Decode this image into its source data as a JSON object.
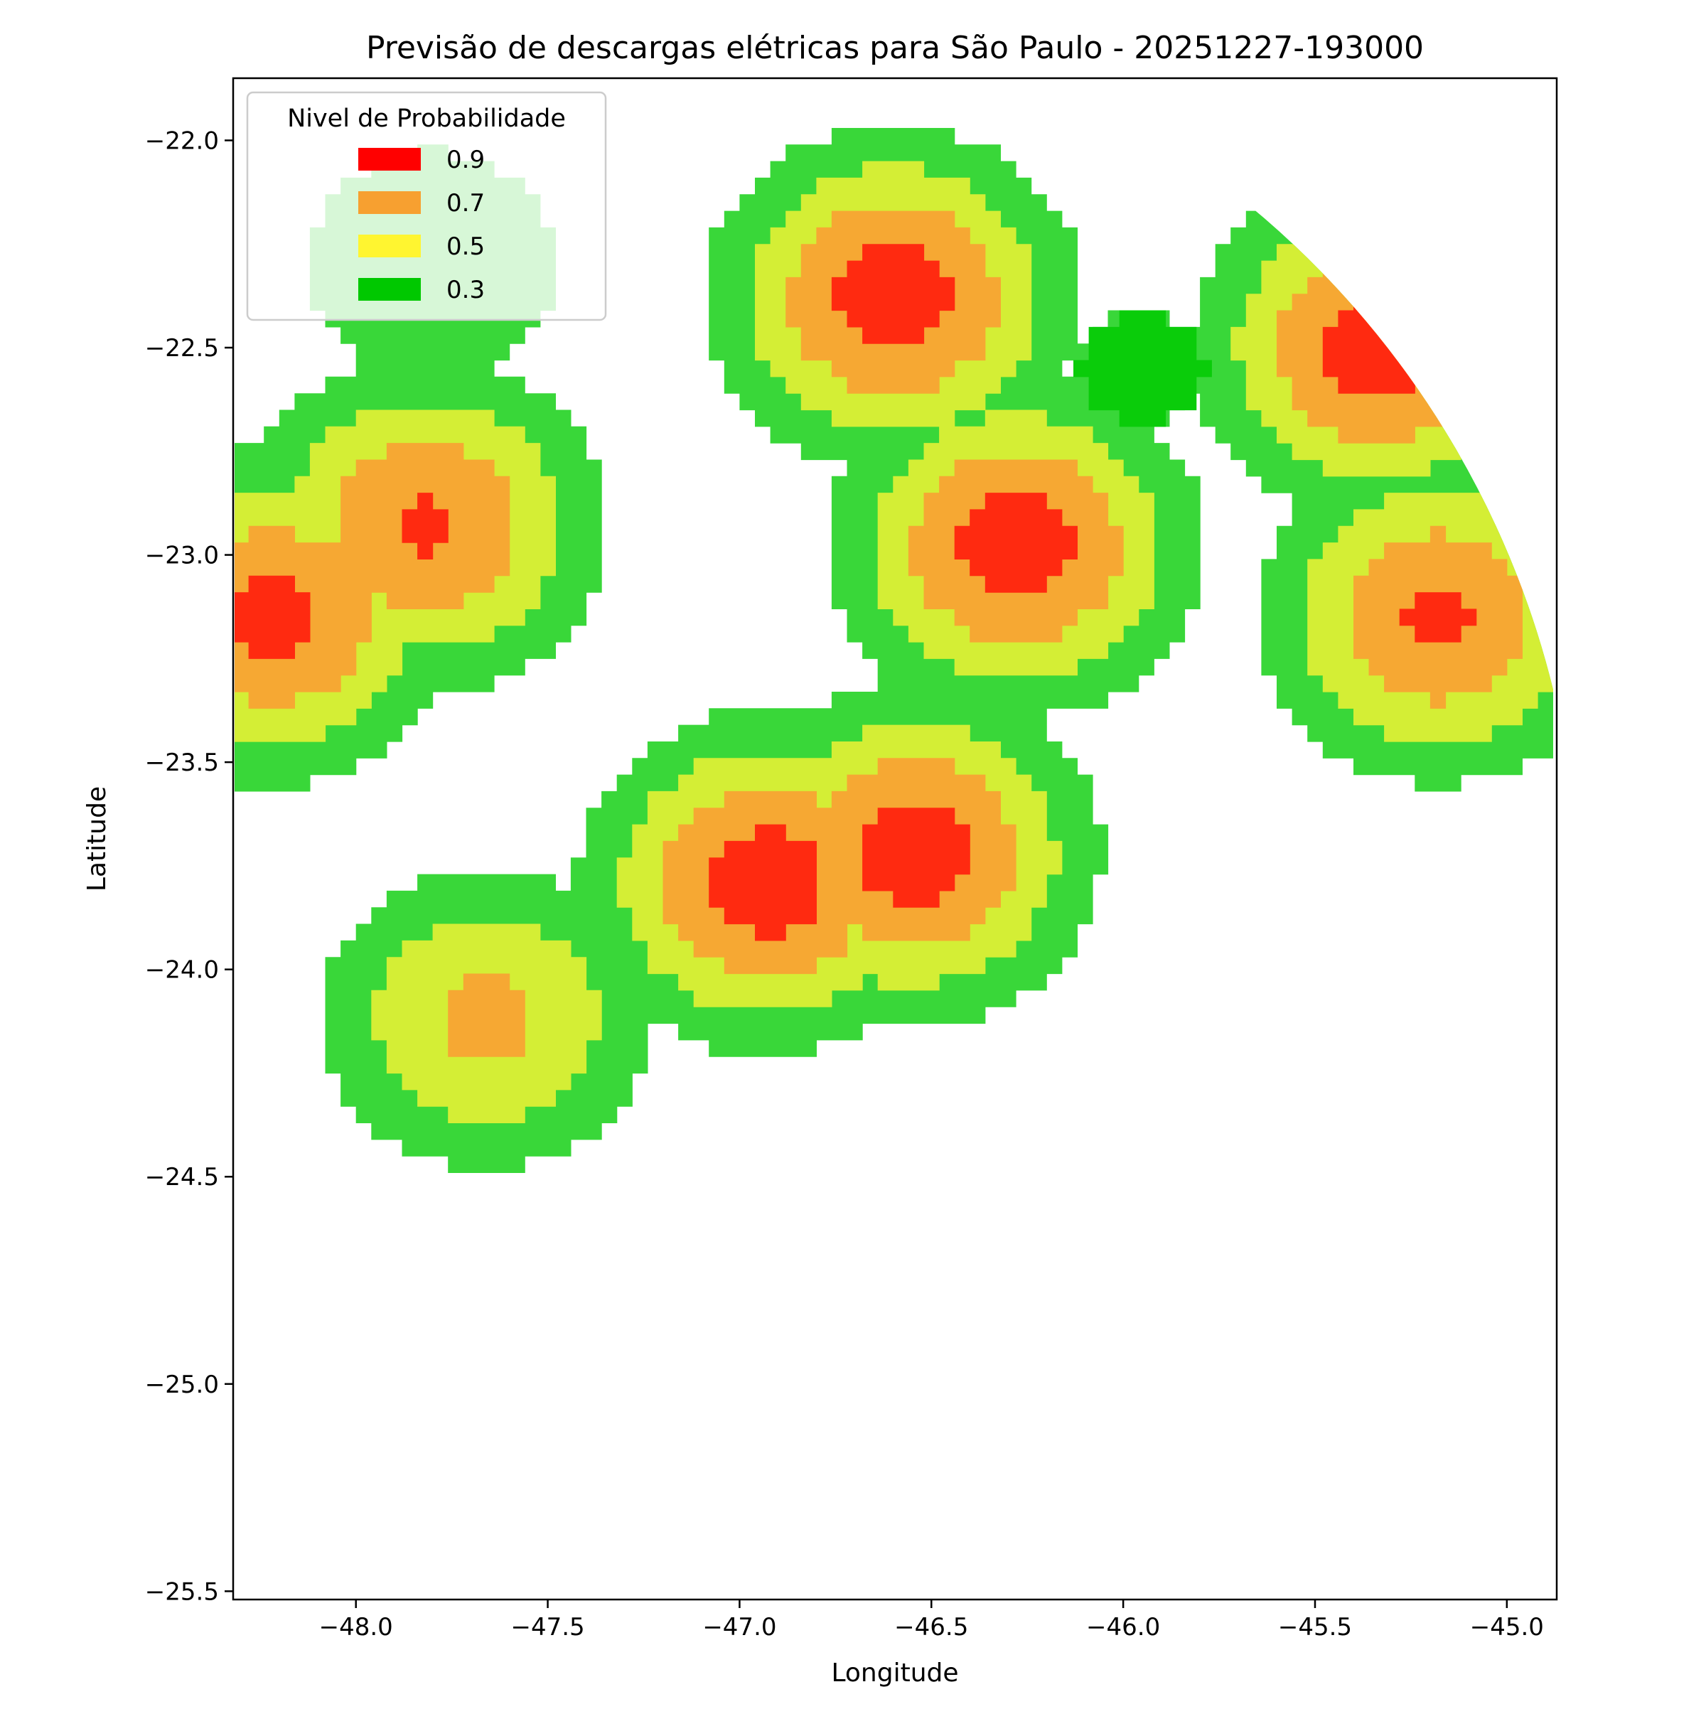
{
  "chart_data": {
    "type": "heatmap",
    "title": "Previsão de descargas elétricas para São Paulo - 20251227-193000",
    "xlabel": "Longitude",
    "ylabel": "Latitude",
    "xlim": [
      -48.32,
      -44.87
    ],
    "ylim": [
      -25.52,
      -21.85
    ],
    "x_ticks": [
      -48.0,
      -47.5,
      -47.0,
      -46.5,
      -46.0,
      -45.5,
      -45.0
    ],
    "x_tick_labels": [
      "−48.0",
      "−47.5",
      "−47.0",
      "−46.5",
      "−46.0",
      "−45.5",
      "−45.0"
    ],
    "y_ticks": [
      -22.0,
      -22.5,
      -23.0,
      -23.5,
      -24.0,
      -24.5,
      -25.0,
      -25.5
    ],
    "y_tick_labels": [
      "−22.0",
      "−22.5",
      "−23.0",
      "−23.5",
      "−24.0",
      "−24.5",
      "−25.0",
      "−25.5"
    ],
    "grid": false,
    "legend": {
      "title": "Nivel de Probabilidade",
      "placement": "top-left",
      "entries": [
        {
          "label": "0.9",
          "color": "#ff0000"
        },
        {
          "label": "0.7",
          "color": "#f7a030"
        },
        {
          "label": "0.5",
          "color": "#fff530"
        },
        {
          "label": "0.3",
          "color": "#00c800"
        }
      ]
    },
    "levels": [
      {
        "level": 0.3,
        "color": "#39d739"
      },
      {
        "level": 0.5,
        "color": "#d4ee35"
      },
      {
        "level": 0.7,
        "color": "#f6a833"
      },
      {
        "level": 0.9,
        "color": "#ff2a10"
      }
    ],
    "peak_color": "#0acc0a",
    "cells": [
      {
        "lon": -46.6,
        "lat": -22.38,
        "peak": 1.0
      },
      {
        "lon": -46.28,
        "lat": -22.98,
        "peak": 1.0
      },
      {
        "lon": -45.33,
        "lat": -22.5,
        "peak": 1.0
      },
      {
        "lon": -45.18,
        "lat": -23.15,
        "peak": 0.93
      },
      {
        "lon": -47.82,
        "lat": -22.93,
        "peak": 0.93
      },
      {
        "lon": -48.22,
        "lat": -23.15,
        "peak": 0.95
      },
      {
        "lon": -46.93,
        "lat": -23.79,
        "peak": 1.0
      },
      {
        "lon": -46.55,
        "lat": -23.72,
        "peak": 1.0
      },
      {
        "lon": -47.66,
        "lat": -24.12,
        "peak": 0.75
      },
      {
        "lon": -47.8,
        "lat": -22.3,
        "peak": 0.5
      },
      {
        "lon": -45.95,
        "lat": -22.55,
        "peak": 0.34
      }
    ]
  }
}
